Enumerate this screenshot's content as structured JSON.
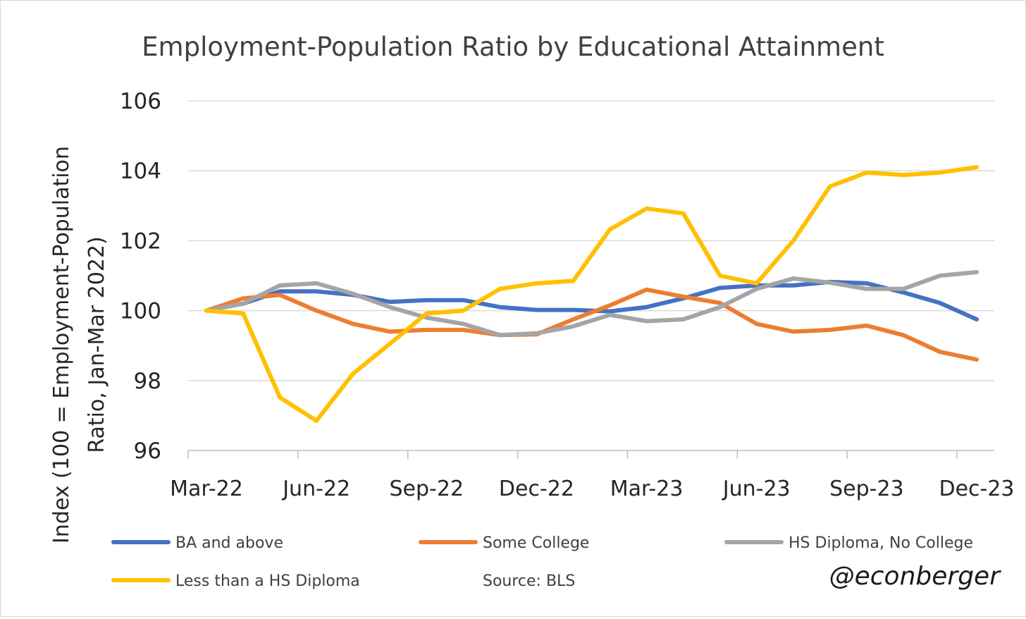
{
  "chart_data": {
    "type": "line",
    "title": "Employment-Population Ratio by Educational Attainment",
    "ylabel": "Index (100 = Employment-Population Ratio, Jan-Mar 2022)",
    "ylabel_lines": [
      "Index (100 = Employment-Population",
      "Ratio, Jan-Mar 2022)"
    ],
    "xlabel": "",
    "ylim": [
      96,
      106
    ],
    "yticks": [
      "96",
      "98",
      "100",
      "102",
      "104",
      "106"
    ],
    "xticks": [
      "Mar-22",
      "Jun-22",
      "Sep-22",
      "Dec-22",
      "Mar-23",
      "Jun-23",
      "Sep-23",
      "Dec-23"
    ],
    "grid": true,
    "legend_position": "bottom",
    "x": [
      "Mar-22",
      "Apr-22",
      "May-22",
      "Jun-22",
      "Jul-22",
      "Aug-22",
      "Sep-22",
      "Oct-22",
      "Nov-22",
      "Dec-22",
      "Jan-23",
      "Feb-23",
      "Mar-23",
      "Apr-23",
      "May-23",
      "Jun-23",
      "Jul-23",
      "Aug-23",
      "Sep-23",
      "Oct-23",
      "Nov-23",
      "Dec-23"
    ],
    "series": [
      {
        "name": "BA and above",
        "color": "#4472C4",
        "values": [
          100.0,
          100.2,
          100.55,
          100.55,
          100.45,
          100.25,
          100.3,
          100.3,
          100.1,
          100.02,
          100.02,
          99.98,
          100.1,
          100.35,
          100.65,
          100.72,
          100.72,
          100.82,
          100.78,
          100.52,
          100.22,
          99.75
        ]
      },
      {
        "name": "Some College",
        "color": "#ED7D31",
        "values": [
          100.0,
          100.35,
          100.45,
          100.0,
          99.62,
          99.4,
          99.45,
          99.45,
          99.3,
          99.32,
          99.75,
          100.15,
          100.6,
          100.4,
          100.22,
          99.62,
          99.4,
          99.45,
          99.57,
          99.3,
          98.82,
          98.6
        ]
      },
      {
        "name": "HS Diploma, No College",
        "color": "#A5A5A5",
        "values": [
          100.0,
          100.2,
          100.72,
          100.78,
          100.48,
          100.1,
          99.8,
          99.62,
          99.3,
          99.35,
          99.55,
          99.88,
          99.7,
          99.75,
          100.1,
          100.62,
          100.92,
          100.8,
          100.62,
          100.62,
          101.0,
          101.1
        ]
      },
      {
        "name": "Less than a HS Diploma",
        "color": "#FFC000",
        "values": [
          100.0,
          99.92,
          97.52,
          96.85,
          98.2,
          99.05,
          99.92,
          100.0,
          100.62,
          100.78,
          100.85,
          102.32,
          102.92,
          102.78,
          101.0,
          100.78,
          102.0,
          103.55,
          103.95,
          103.88,
          103.95,
          104.1
        ]
      }
    ],
    "annotations": [
      "Source: BLS",
      "@econberger"
    ]
  }
}
